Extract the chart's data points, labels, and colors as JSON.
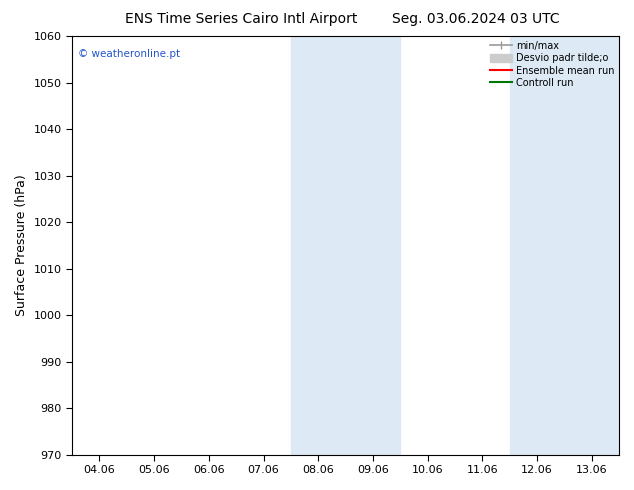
{
  "title_left": "ENS Time Series Cairo Intl Airport",
  "title_right": "Seg. 03.06.2024 03 UTC",
  "ylabel": "Surface Pressure (hPa)",
  "ylim": [
    970,
    1060
  ],
  "yticks": [
    970,
    980,
    990,
    1000,
    1010,
    1020,
    1030,
    1040,
    1050,
    1060
  ],
  "xtick_labels": [
    "04.06",
    "05.06",
    "06.06",
    "07.06",
    "08.06",
    "09.06",
    "10.06",
    "11.06",
    "12.06",
    "13.06"
  ],
  "bg_color": "#ffffff",
  "plot_bg_color": "#ffffff",
  "shaded_regions": [
    {
      "xstart": 4,
      "xend": 6,
      "color": "#ddeaf5"
    },
    {
      "xstart": 8,
      "xend": 10,
      "color": "#ddeaf5"
    }
  ],
  "watermark_text": "© weatheronline.pt",
  "watermark_color": "#2255cc",
  "legend_labels": [
    "min/max",
    "Desvio padr tilde;o",
    "Ensemble mean run",
    "Controll run"
  ],
  "legend_colors": [
    "#999999",
    "#cccccc",
    "#ff0000",
    "#007700"
  ],
  "title_fontsize": 10,
  "tick_fontsize": 8,
  "ylabel_fontsize": 9
}
